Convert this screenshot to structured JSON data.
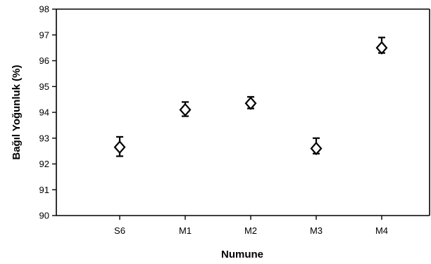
{
  "chart_data": {
    "type": "scatter",
    "title": "",
    "xlabel": "Numune",
    "ylabel": "Bağıl Yoğunluk (%)",
    "categories": [
      "S6",
      "M1",
      "M2",
      "M3",
      "M4"
    ],
    "ylim": [
      90,
      98
    ],
    "yticks": [
      90,
      91,
      92,
      93,
      94,
      95,
      96,
      97,
      98
    ],
    "grid": false,
    "legend": "none",
    "marker": "open-diamond",
    "series": [
      {
        "values": [
          92.65,
          94.1,
          94.35,
          92.6,
          96.5
        ],
        "error_low": [
          92.3,
          93.85,
          94.15,
          92.4,
          96.3
        ],
        "error_high": [
          93.05,
          94.4,
          94.6,
          93.0,
          96.9
        ]
      }
    ]
  }
}
